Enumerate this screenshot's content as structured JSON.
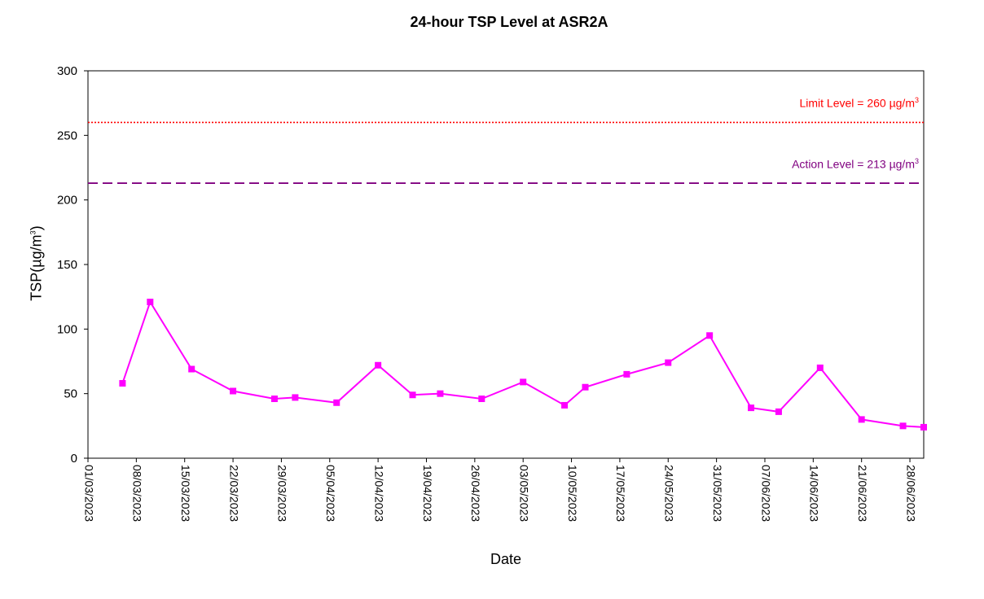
{
  "chart_data": {
    "type": "line",
    "title": "24-hour TSP Level at ASR2A",
    "xlabel": "Date",
    "ylabel": "TSP(µg/m3)",
    "ylim": [
      0,
      300
    ],
    "yticks": [
      0,
      50,
      100,
      150,
      200,
      250,
      300
    ],
    "xlim": [
      "2023-03-01",
      "2023-06-30"
    ],
    "xtick_labels": [
      "01/03/2023",
      "08/03/2023",
      "15/03/2023",
      "22/03/2023",
      "29/03/2023",
      "05/04/2023",
      "12/04/2023",
      "19/04/2023",
      "26/04/2023",
      "03/05/2023",
      "10/05/2023",
      "17/05/2023",
      "24/05/2023",
      "31/05/2023",
      "07/06/2023",
      "14/06/2023",
      "21/06/2023",
      "28/06/2023"
    ],
    "grid": false,
    "series": [
      {
        "color": "#ff00ff",
        "marker": "square",
        "points": [
          {
            "x": "2023-03-06",
            "y": 58
          },
          {
            "x": "2023-03-10",
            "y": 121
          },
          {
            "x": "2023-03-16",
            "y": 69
          },
          {
            "x": "2023-03-22",
            "y": 52
          },
          {
            "x": "2023-03-28",
            "y": 46
          },
          {
            "x": "2023-03-31",
            "y": 47
          },
          {
            "x": "2023-04-06",
            "y": 43
          },
          {
            "x": "2023-04-12",
            "y": 72
          },
          {
            "x": "2023-04-17",
            "y": 49
          },
          {
            "x": "2023-04-21",
            "y": 50
          },
          {
            "x": "2023-04-27",
            "y": 46
          },
          {
            "x": "2023-05-03",
            "y": 59
          },
          {
            "x": "2023-05-09",
            "y": 41
          },
          {
            "x": "2023-05-12",
            "y": 55
          },
          {
            "x": "2023-05-18",
            "y": 65
          },
          {
            "x": "2023-05-24",
            "y": 74
          },
          {
            "x": "2023-05-30",
            "y": 95
          },
          {
            "x": "2023-06-05",
            "y": 39
          },
          {
            "x": "2023-06-09",
            "y": 36
          },
          {
            "x": "2023-06-15",
            "y": 70
          },
          {
            "x": "2023-06-21",
            "y": 30
          },
          {
            "x": "2023-06-27",
            "y": 25
          },
          {
            "x": "2023-06-30",
            "y": 24
          }
        ]
      }
    ],
    "reference_lines": [
      {
        "label_prefix": "Limit Level = 260 ",
        "label_unit": "µg/m",
        "label_sup": "3",
        "value": 260,
        "color": "#ff0000",
        "style": "dotted"
      },
      {
        "label_prefix": "Action Level = 213 ",
        "label_unit": "µg/m",
        "label_sup": "3",
        "value": 213,
        "color": "#800080",
        "style": "dashed"
      }
    ],
    "ylabel_parts": {
      "prefix": "TSP(",
      "unit": "µg/m",
      "sup": "3",
      "suffix": ")"
    }
  }
}
